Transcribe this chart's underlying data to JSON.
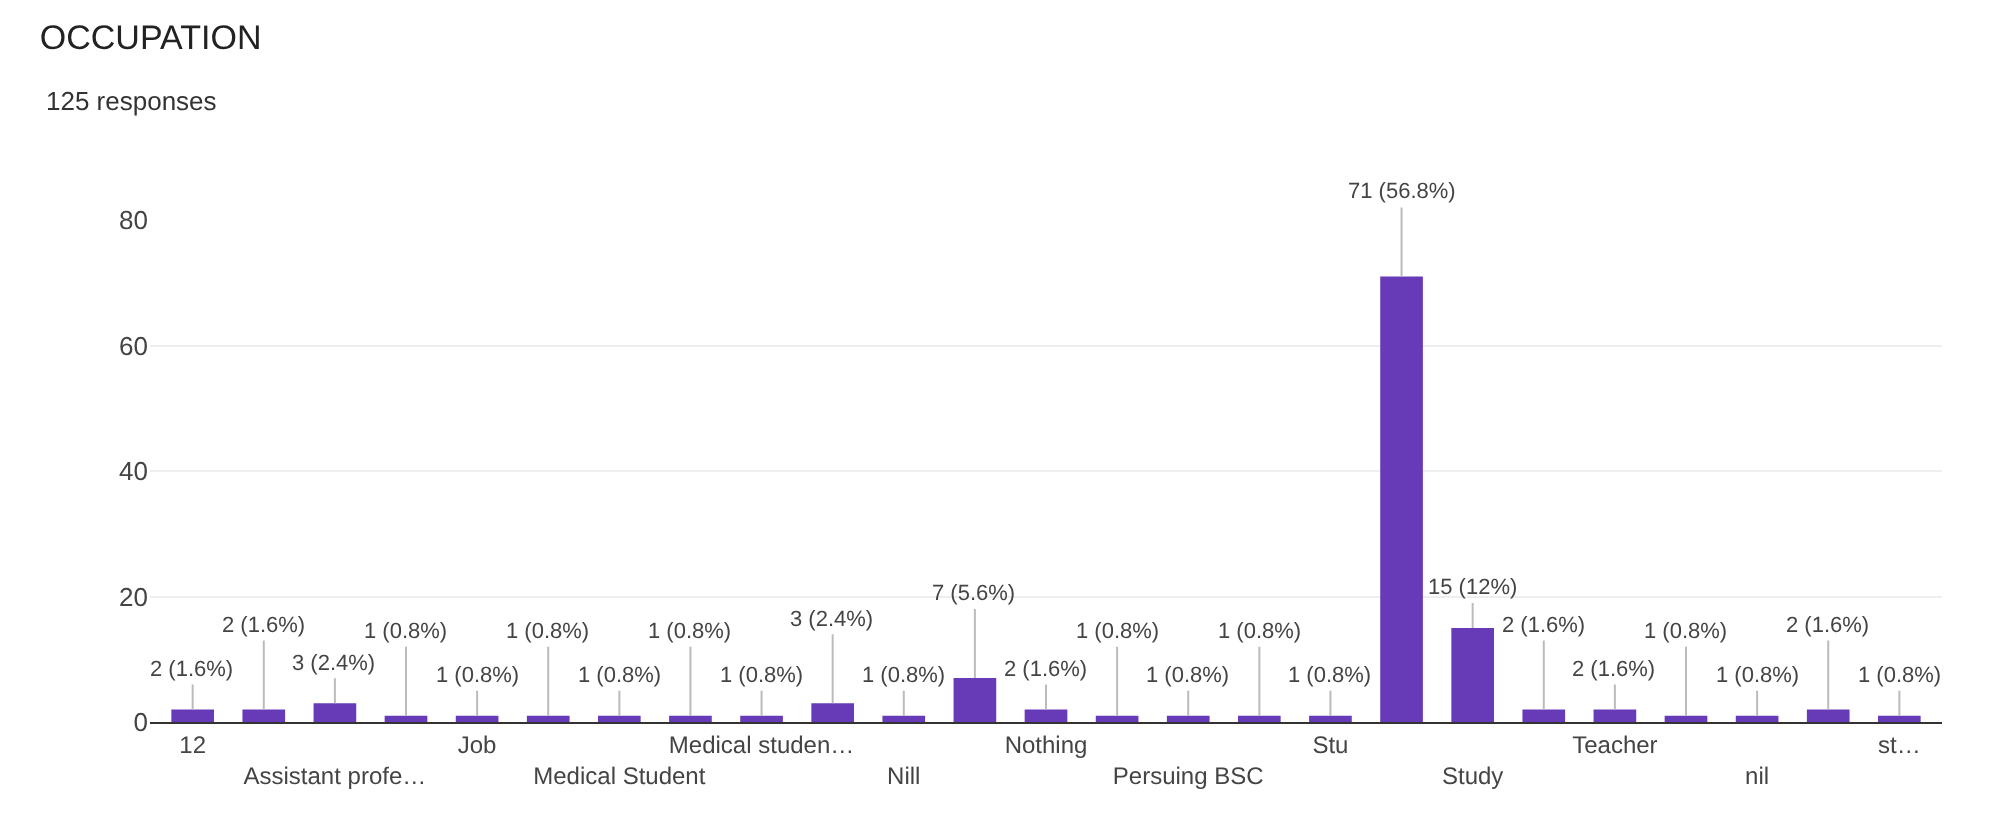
{
  "chart_data": {
    "type": "bar",
    "title": "OCCUPATION",
    "subtitle": "125 responses",
    "categories": [
      "12",
      null,
      "Assistant profe…",
      null,
      "Job",
      null,
      "Medical Student",
      null,
      "Medical studen…",
      null,
      "Nill",
      null,
      "Nothing",
      null,
      "Persuing BSC",
      null,
      "Stu",
      null,
      "Study",
      null,
      "Teacher",
      null,
      "nil",
      null,
      "st…"
    ],
    "values": [
      2,
      2,
      3,
      1,
      1,
      1,
      1,
      1,
      1,
      3,
      1,
      7,
      2,
      1,
      1,
      1,
      1,
      71,
      15,
      2,
      2,
      1,
      1,
      2,
      1
    ],
    "value_labels": [
      "2 (1.6%)",
      "2 (1.6%)",
      "3 (2.4%)",
      "1 (0.8%)",
      "1 (0.8%)",
      "1 (0.8%)",
      "1 (0.8%)",
      "1 (0.8%)",
      "1 (0.8%)",
      "3 (2.4%)",
      "1 (0.8%)",
      "7 (5.6%)",
      "2 (1.6%)",
      "1 (0.8%)",
      "1 (0.8%)",
      "1 (0.8%)",
      "1 (0.8%)",
      "71 (56.8%)",
      "15 (12%)",
      "2 (1.6%)",
      "2 (1.6%)",
      "1 (0.8%)",
      "1 (0.8%)",
      "2 (1.6%)",
      "1 (0.8%)"
    ],
    "color": "#673ab7",
    "ylim": [
      0,
      80
    ],
    "yticks": [
      0,
      20,
      40,
      60,
      80
    ],
    "grid": "y"
  }
}
